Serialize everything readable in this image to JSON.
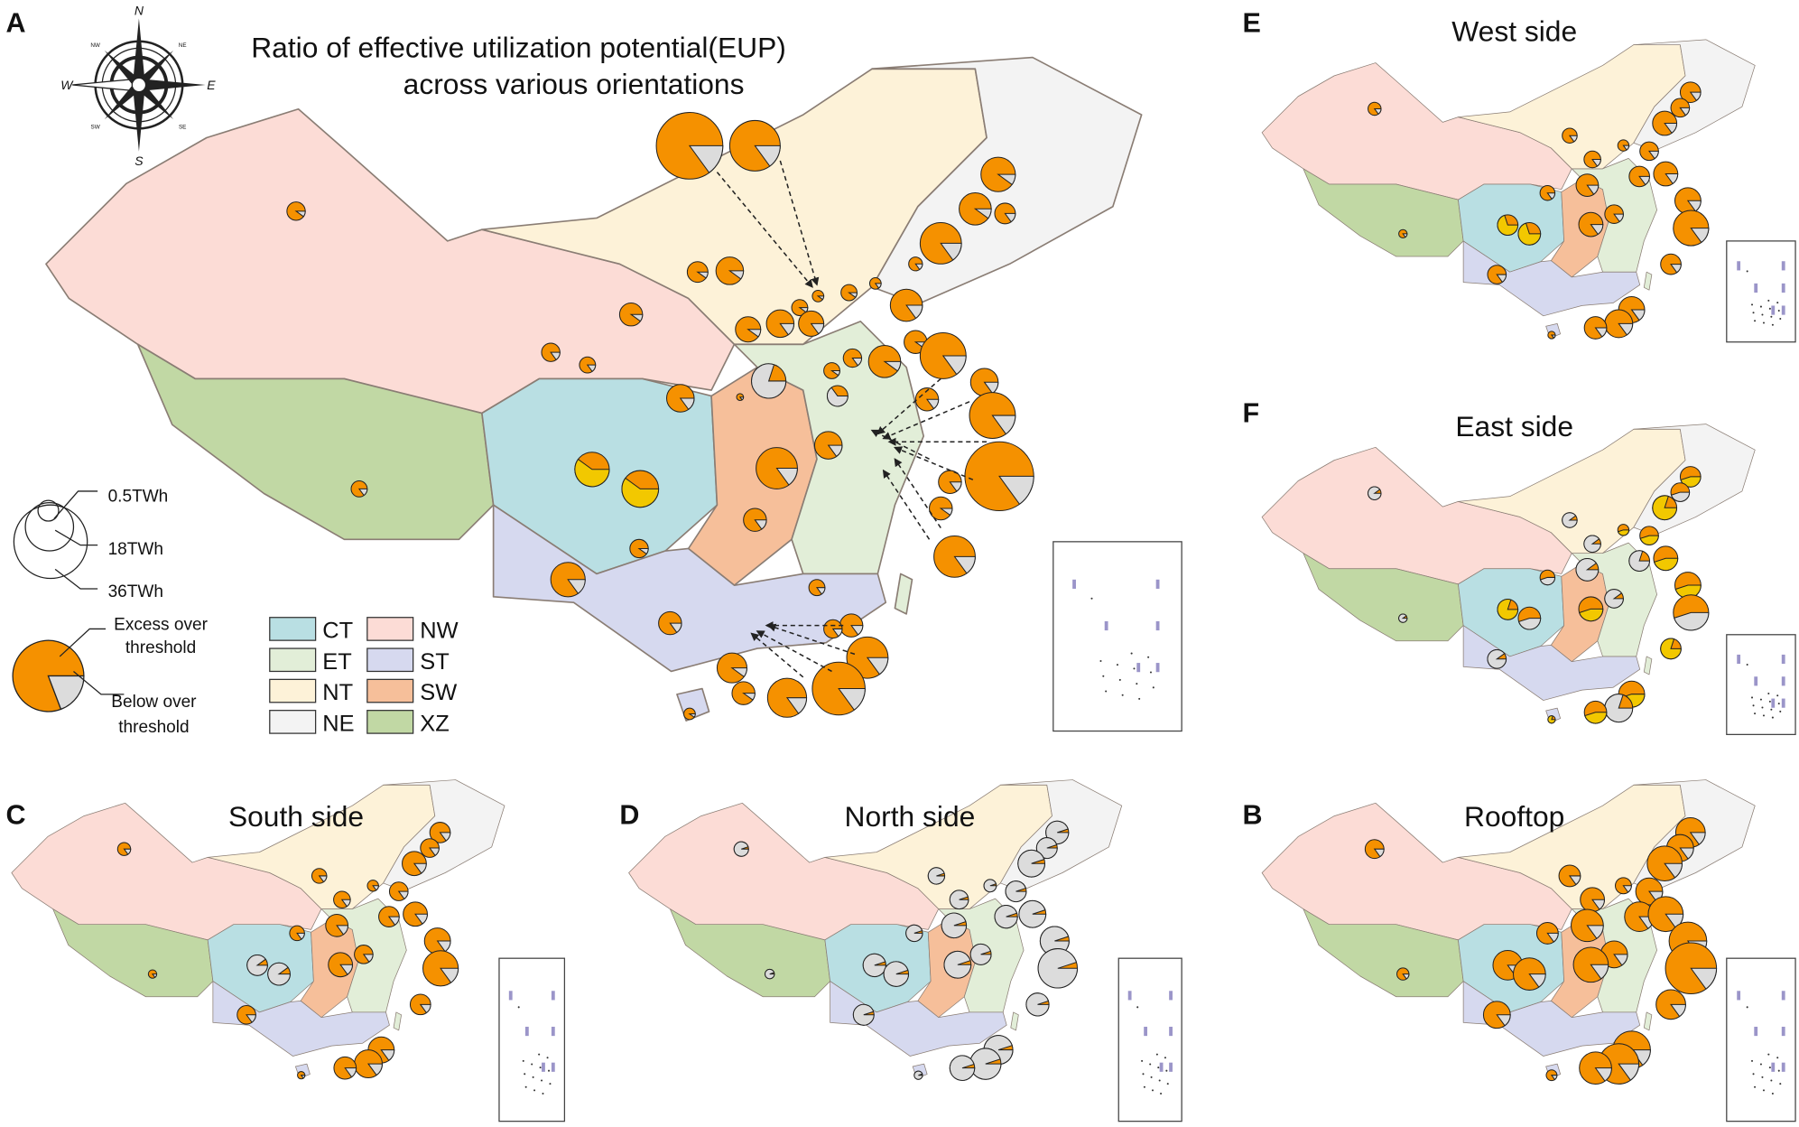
{
  "panels": {
    "A": {
      "letter": "A",
      "title_line1": "Ratio of effective utilization potential(EUP)",
      "title_line2": "across various orientations"
    },
    "E": {
      "letter": "E",
      "title": "West side"
    },
    "F": {
      "letter": "F",
      "title": "East side"
    },
    "C": {
      "letter": "C",
      "title": "South side"
    },
    "D": {
      "letter": "D",
      "title": "North side"
    },
    "B": {
      "letter": "B",
      "title": "Rooftop"
    }
  },
  "compass": {
    "N": "N",
    "S": "S",
    "E": "E",
    "W": "W",
    "NE": "NE",
    "NW": "NW",
    "SE": "SE",
    "SW": "SW"
  },
  "size_legend": {
    "small": "0.5TWh",
    "medium": "18TWh",
    "large": "36TWh"
  },
  "pie_legend": {
    "excess_line1": "Excess over",
    "excess_line2": "threshold",
    "below_line1": "Below over",
    "below_line2": "threshold"
  },
  "regions": [
    {
      "code": "CT",
      "color": "#b9dfe3"
    },
    {
      "code": "ET",
      "color": "#e2eed8"
    },
    {
      "code": "NT",
      "color": "#fdf2d8"
    },
    {
      "code": "NE",
      "color": "#f3f3f3"
    },
    {
      "code": "NW",
      "color": "#fcdcd6"
    },
    {
      "code": "ST",
      "color": "#d6d9ef"
    },
    {
      "code": "SW",
      "color": "#f6bf9a"
    },
    {
      "code": "XZ",
      "color": "#c1d8a4"
    }
  ],
  "colors": {
    "excess": "#f59100",
    "below": "#dcdcdc",
    "partial": "#f2c800"
  },
  "main_pies_excess_ratio": [
    0.85,
    0.85,
    0.9,
    0.9,
    0.9,
    0.85,
    0.85,
    0.9,
    0.9,
    0.85,
    0.9,
    0.9,
    0.85,
    0.9,
    0.85,
    0.85,
    0.9,
    0.9,
    0.85,
    0.9,
    0.85,
    0.85,
    0.9,
    0.85,
    0.85,
    0.9,
    0.85,
    0.35,
    0.2,
    0.85,
    0.85,
    0.9,
    0.85,
    0.85,
    0.85,
    0.85,
    0.85,
    0.85,
    0.9,
    0.85,
    0.9,
    0.85,
    0.85,
    0.85,
    0.85,
    0.85,
    0.85,
    0.85
  ]
}
